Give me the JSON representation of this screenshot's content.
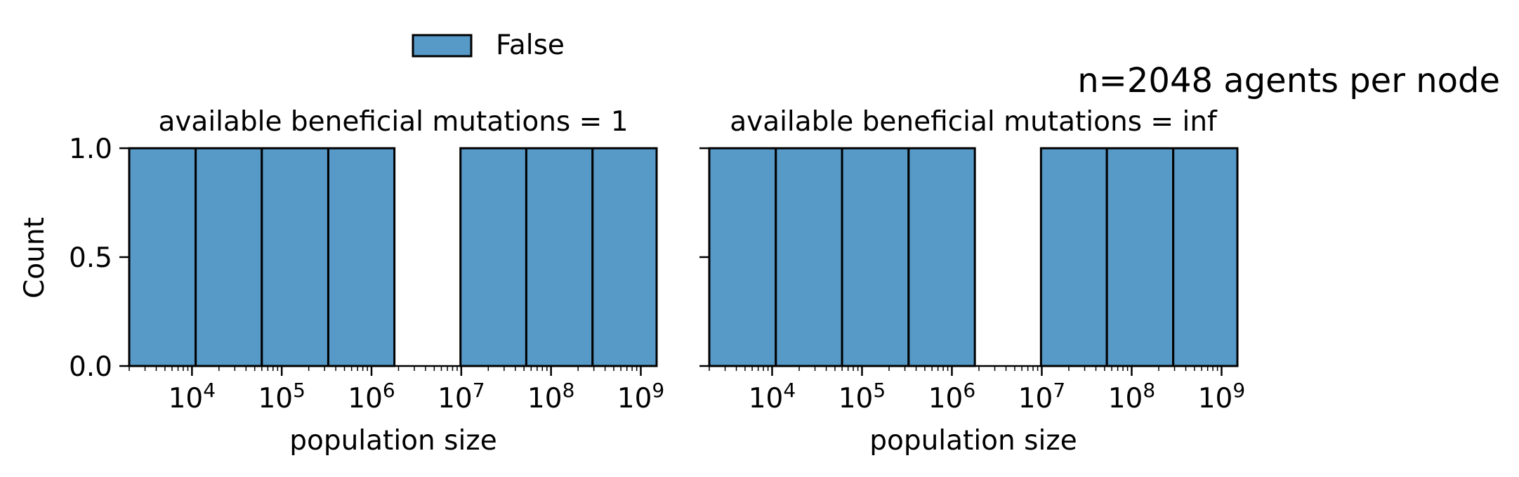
{
  "figure": {
    "suptitle": "n=2048 agents per node"
  },
  "legend": {
    "placement": "top-center",
    "entries": [
      {
        "label": "False",
        "color": "#5799c7"
      }
    ]
  },
  "colors": {
    "bar_fill": "#5799c7",
    "bar_edge": "#000000",
    "axis": "#000000"
  },
  "chart_data": [
    {
      "type": "bar",
      "title": "available beneficial mutations = 1",
      "xlabel": "population size",
      "ylabel": "Count",
      "xscale": "log",
      "xlim": [
        2000,
        1500000000
      ],
      "ylim": [
        0,
        1.0
      ],
      "yticks": [
        {
          "value": 0.0,
          "label": "0.0"
        },
        {
          "value": 0.5,
          "label": "0.5"
        },
        {
          "value": 1.0,
          "label": "1.0"
        }
      ],
      "xticks": [
        {
          "base": "10",
          "exp": "4",
          "value": 10000
        },
        {
          "base": "10",
          "exp": "5",
          "value": 100000
        },
        {
          "base": "10",
          "exp": "6",
          "value": 1000000
        },
        {
          "base": "10",
          "exp": "7",
          "value": 10000000
        },
        {
          "base": "10",
          "exp": "8",
          "value": 100000000
        },
        {
          "base": "10",
          "exp": "9",
          "value": 1000000000
        }
      ],
      "grid": false,
      "series": [
        {
          "name": "False",
          "bins": [
            {
              "x0": 2000,
              "x1": 11000,
              "count": 1
            },
            {
              "x0": 11000,
              "x1": 60000,
              "count": 1
            },
            {
              "x0": 60000,
              "x1": 330000,
              "count": 1
            },
            {
              "x0": 330000,
              "x1": 1800000,
              "count": 1
            },
            {
              "x0": 1800000,
              "x1": 9800000,
              "count": 0
            },
            {
              "x0": 9800000,
              "x1": 53000000,
              "count": 1
            },
            {
              "x0": 53000000,
              "x1": 290000000,
              "count": 1
            },
            {
              "x0": 290000000,
              "x1": 1500000000,
              "count": 1
            }
          ]
        }
      ]
    },
    {
      "type": "bar",
      "title": "available beneficial mutations = inf",
      "xlabel": "population size",
      "ylabel": "",
      "xscale": "log",
      "xlim": [
        2000,
        1500000000
      ],
      "ylim": [
        0,
        1.0
      ],
      "yticks": [
        {
          "value": 0.0,
          "label": ""
        },
        {
          "value": 0.5,
          "label": ""
        },
        {
          "value": 1.0,
          "label": ""
        }
      ],
      "xticks": [
        {
          "base": "10",
          "exp": "4",
          "value": 10000
        },
        {
          "base": "10",
          "exp": "5",
          "value": 100000
        },
        {
          "base": "10",
          "exp": "6",
          "value": 1000000
        },
        {
          "base": "10",
          "exp": "7",
          "value": 10000000
        },
        {
          "base": "10",
          "exp": "8",
          "value": 100000000
        },
        {
          "base": "10",
          "exp": "9",
          "value": 1000000000
        }
      ],
      "grid": false,
      "series": [
        {
          "name": "False",
          "bins": [
            {
              "x0": 2000,
              "x1": 11000,
              "count": 1
            },
            {
              "x0": 11000,
              "x1": 60000,
              "count": 1
            },
            {
              "x0": 60000,
              "x1": 330000,
              "count": 1
            },
            {
              "x0": 330000,
              "x1": 1800000,
              "count": 1
            },
            {
              "x0": 1800000,
              "x1": 9800000,
              "count": 0
            },
            {
              "x0": 9800000,
              "x1": 53000000,
              "count": 1
            },
            {
              "x0": 53000000,
              "x1": 290000000,
              "count": 1
            },
            {
              "x0": 290000000,
              "x1": 1500000000,
              "count": 1
            }
          ]
        }
      ]
    }
  ]
}
